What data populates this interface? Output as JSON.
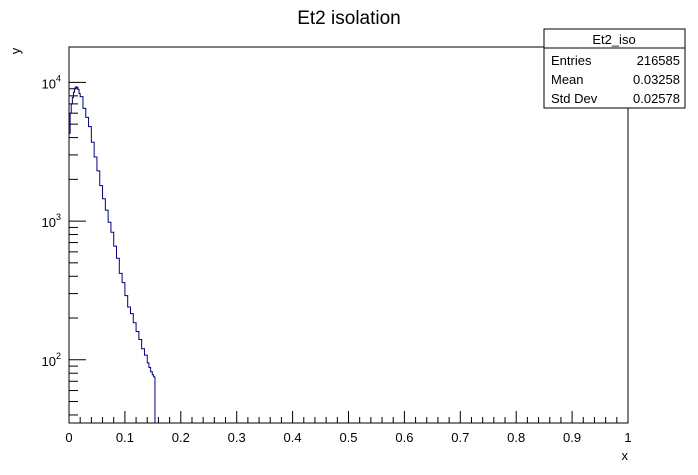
{
  "chart_data": {
    "type": "line",
    "title": "Et2 isolation",
    "xlabel": "x",
    "ylabel": "y",
    "xlim": [
      0,
      1
    ],
    "ylim": [
      35,
      18000
    ],
    "ylog": true,
    "grid": false,
    "x_major_ticks": [
      0,
      0.1,
      0.2,
      0.3,
      0.4,
      0.5,
      0.6,
      0.7,
      0.8,
      0.9,
      1
    ],
    "x_tick_labels": [
      "0",
      "0.1",
      "0.2",
      "0.3",
      "0.4",
      "0.5",
      "0.6",
      "0.7",
      "0.8",
      "0.9",
      "1"
    ],
    "y_major_ticks": [
      100,
      1000,
      10000
    ],
    "y_tick_labels": [
      {
        "base": "10",
        "exp": "2"
      },
      {
        "base": "10",
        "exp": "3"
      },
      {
        "base": "10",
        "exp": "4"
      }
    ],
    "series": [
      {
        "color": "#000080",
        "step": true,
        "x": [
          0,
          0.002,
          0.004,
          0.006,
          0.008,
          0.01,
          0.012,
          0.014,
          0.016,
          0.018,
          0.02,
          0.025,
          0.03,
          0.035,
          0.04,
          0.045,
          0.05,
          0.055,
          0.06,
          0.065,
          0.07,
          0.075,
          0.08,
          0.085,
          0.09,
          0.095,
          0.1,
          0.105,
          0.11,
          0.115,
          0.12,
          0.125,
          0.13,
          0.135,
          0.14,
          0.143,
          0.146,
          0.149,
          0.151,
          0.152
        ],
        "y": [
          4300,
          6000,
          7000,
          7800,
          8500,
          9100,
          9300,
          9200,
          8900,
          8300,
          7900,
          6500,
          5600,
          4800,
          3700,
          2900,
          2300,
          1800,
          1450,
          1200,
          980,
          830,
          660,
          540,
          420,
          360,
          290,
          240,
          215,
          185,
          160,
          140,
          120,
          108,
          95,
          88,
          82,
          78,
          76,
          75
        ]
      }
    ],
    "stats_box": {
      "name": "Et2_iso",
      "rows": [
        {
          "label": "Entries",
          "value": "216585"
        },
        {
          "label": "Mean",
          "value": "0.03258"
        },
        {
          "label": "Std Dev",
          "value": "0.02578"
        }
      ]
    }
  }
}
